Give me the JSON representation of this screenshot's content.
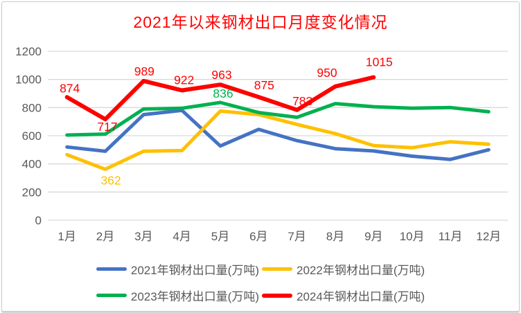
{
  "page": {
    "background": "#ffffff",
    "border_color": "#cbcbcb"
  },
  "chart_data": {
    "type": "line",
    "title": "2021年以来钢材出口月度变化情况",
    "title_color": "#ff0000",
    "categories": [
      "1月",
      "2月",
      "3月",
      "4月",
      "5月",
      "6月",
      "7月",
      "8月",
      "9月",
      "10月",
      "11月",
      "12月"
    ],
    "xlabel": "",
    "ylabel": "",
    "y_axis": {
      "min": 0,
      "max": 1200,
      "step": 200,
      "tick_color": "#595959"
    },
    "grid": true,
    "gridline_color": "#d9d9d9",
    "legend_position": "bottom",
    "series": [
      {
        "name": "2021年钢材出口量(万吨)",
        "color": "#4472c4",
        "values": [
          520,
          490,
          750,
          780,
          527,
          645,
          565,
          508,
          492,
          455,
          432,
          500
        ],
        "data_labels": []
      },
      {
        "name": "2022年钢材出口量(万吨)",
        "color": "#ffc000",
        "values": [
          465,
          362,
          490,
          495,
          775,
          750,
          680,
          615,
          530,
          515,
          557,
          540
        ],
        "data_labels": [
          {
            "category": "2月",
            "value": 362,
            "position": "below"
          }
        ]
      },
      {
        "name": "2023年钢材出口量(万吨)",
        "color": "#00b050",
        "values": [
          605,
          612,
          790,
          795,
          836,
          765,
          731,
          828,
          806,
          795,
          800,
          770
        ],
        "data_labels": [
          {
            "category": "5月",
            "value": 836,
            "position": "above"
          }
        ]
      },
      {
        "name": "2024年钢材出口量(万吨)",
        "color": "#ff0000",
        "values": [
          874,
          717,
          989,
          922,
          963,
          875,
          783,
          950,
          1015
        ],
        "data_labels": [
          {
            "category": "1月",
            "value": 874,
            "position": "above"
          },
          {
            "category": "2月",
            "value": 717,
            "position": "below"
          },
          {
            "category": "3月",
            "value": 989,
            "position": "above"
          },
          {
            "category": "4月",
            "value": 922,
            "position": "above"
          },
          {
            "category": "5月",
            "value": 963,
            "position": "above"
          },
          {
            "category": "6月",
            "value": 875,
            "position": "above"
          },
          {
            "category": "7月",
            "value": 783,
            "position": "above"
          },
          {
            "category": "8月",
            "value": 950,
            "position": "above"
          },
          {
            "category": "9月",
            "value": 1015,
            "position": "above"
          }
        ]
      }
    ]
  }
}
